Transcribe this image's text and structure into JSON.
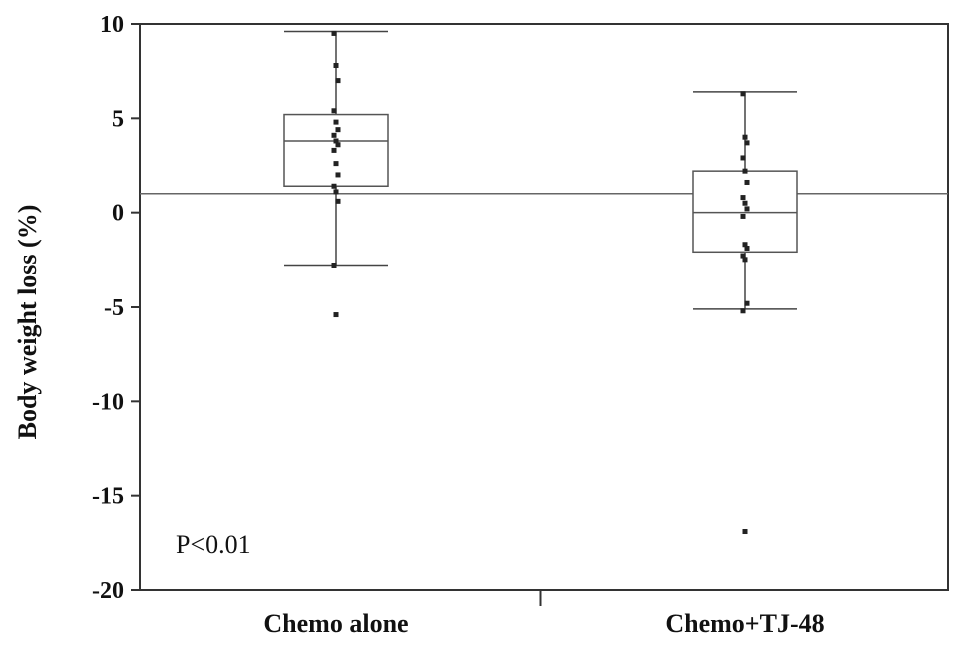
{
  "chart_data": {
    "type": "box",
    "ylabel": "Body weight loss (%)",
    "ylim": [
      -20,
      10
    ],
    "yticks": [
      10,
      5,
      0,
      -5,
      -10,
      -15,
      -20
    ],
    "categories": [
      "Chemo alone",
      "Chemo+TJ-48"
    ],
    "boxes": [
      {
        "category": "Chemo alone",
        "whisker_high": 9.6,
        "q3": 5.2,
        "median": 3.8,
        "q1": 1.4,
        "whisker_low": -2.8,
        "points": [
          9.5,
          7.8,
          7.0,
          5.4,
          4.8,
          4.4,
          4.1,
          3.8,
          3.6,
          3.3,
          2.6,
          2.0,
          1.4,
          1.1,
          0.6,
          -2.8,
          -5.4
        ]
      },
      {
        "category": "Chemo+TJ-48",
        "whisker_high": 6.4,
        "q3": 2.2,
        "median": 0.0,
        "q1": -2.1,
        "whisker_low": -5.1,
        "points": [
          6.3,
          4.0,
          3.7,
          2.9,
          2.2,
          1.6,
          0.8,
          0.5,
          0.2,
          -0.2,
          -1.7,
          -1.9,
          -2.3,
          -2.5,
          -4.8,
          -5.2,
          -16.9
        ]
      }
    ],
    "reference_line": 1.0,
    "annotation": "P<0.01",
    "grid": false,
    "legend": "none"
  }
}
